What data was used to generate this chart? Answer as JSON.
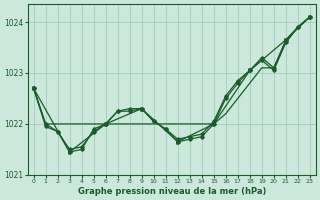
{
  "title": "Graphe pression niveau de la mer (hPa)",
  "background_color": "#cce8dc",
  "grid_color": "#99ccb3",
  "line_color": "#1a5c2a",
  "ylim": [
    1021.0,
    1024.35
  ],
  "yticks": [
    1021,
    1022,
    1023,
    1024
  ],
  "xlim": [
    -0.5,
    23.5
  ],
  "xticks": [
    0,
    1,
    2,
    3,
    4,
    5,
    6,
    7,
    8,
    9,
    10,
    11,
    12,
    13,
    14,
    15,
    16,
    17,
    18,
    19,
    20,
    21,
    22,
    23
  ],
  "line1_x": [
    0,
    1,
    2,
    3,
    4,
    5,
    6,
    7,
    8,
    9,
    10,
    11,
    12,
    13,
    14,
    15,
    16,
    17,
    18,
    19,
    20,
    21,
    22,
    23
  ],
  "line1_y": [
    1022.7,
    1022.0,
    1022.0,
    1022.0,
    1022.0,
    1022.0,
    1022.0,
    1022.0,
    1022.0,
    1022.0,
    1022.0,
    1022.0,
    1022.0,
    1022.0,
    1022.0,
    1022.0,
    1022.2,
    1022.5,
    1022.8,
    1023.1,
    1023.1,
    1023.6,
    1023.9,
    1024.1
  ],
  "line2_x": [
    0,
    1,
    2,
    3,
    4,
    5,
    6,
    7,
    8,
    9,
    10,
    11,
    12,
    13,
    14,
    15,
    16,
    17,
    18,
    19,
    20,
    21,
    22,
    23
  ],
  "line2_y": [
    1022.7,
    1021.95,
    1021.85,
    1021.5,
    1021.55,
    1021.85,
    1022.0,
    1022.25,
    1022.25,
    1022.3,
    1022.05,
    1021.9,
    1021.7,
    1021.75,
    1021.8,
    1022.05,
    1022.55,
    1022.85,
    1023.05,
    1023.25,
    1023.05,
    1023.6,
    1023.9,
    1024.1
  ],
  "line3_x": [
    0,
    1,
    2,
    3,
    4,
    5,
    6,
    7,
    8,
    9,
    10,
    11,
    12,
    13,
    14,
    15,
    16,
    17,
    18,
    19,
    20,
    21,
    22,
    23
  ],
  "line3_y": [
    1022.7,
    1022.0,
    1021.85,
    1021.45,
    1021.5,
    1021.9,
    1022.0,
    1022.25,
    1022.3,
    1022.3,
    1022.05,
    1021.9,
    1021.65,
    1021.7,
    1021.75,
    1022.0,
    1022.5,
    1022.8,
    1023.05,
    1023.3,
    1023.1,
    1023.65,
    1023.9,
    1024.1
  ],
  "line4_x": [
    0,
    3,
    6,
    9,
    12,
    15,
    18,
    21,
    23
  ],
  "line4_y": [
    1022.7,
    1021.45,
    1022.0,
    1022.3,
    1021.65,
    1022.0,
    1023.05,
    1023.65,
    1024.1
  ]
}
